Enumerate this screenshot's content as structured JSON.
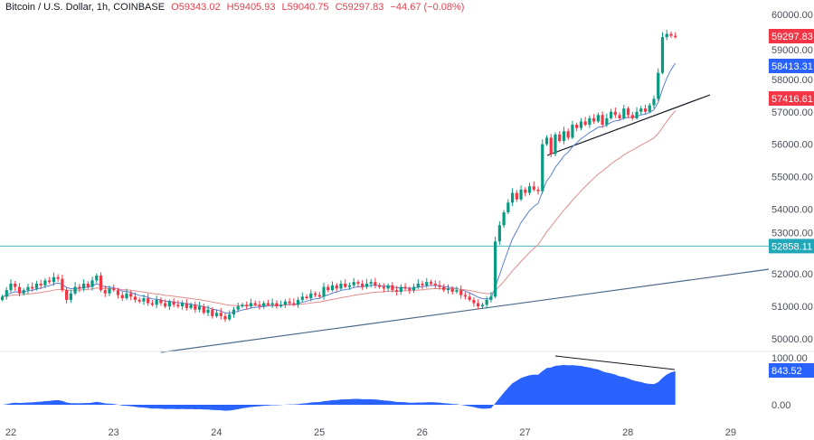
{
  "header": {
    "symbol": "Bitcoin / U.S. Dollar, 1h, COINBASE",
    "open": "O59343.02",
    "high": "H59405.93",
    "low": "L59040.75",
    "close": "C59297.83",
    "change": "−44.67 (−0.08%)"
  },
  "colors": {
    "up": "#089981",
    "down": "#f23645",
    "fast_ma": "#5b7fd6",
    "slow_ma": "#e08c8c",
    "support_line": "#4fb3c0",
    "oscillator": "#2962ff",
    "trendline": "#131722",
    "long_trendline": "#4a6a8a"
  },
  "chart_data": {
    "type": "candlestick",
    "title": "Bitcoin / U.S. Dollar, 1h, COINBASE",
    "x_tick_labels": [
      "22",
      "23",
      "24",
      "25",
      "26",
      "27",
      "28",
      "29"
    ],
    "y_tick_labels": [
      "60000.00",
      "59000.00",
      "58000.00",
      "57000.00",
      "56000.00",
      "55000.00",
      "54000.00",
      "53000.00",
      "52000.00",
      "51000.00",
      "50000.00"
    ],
    "ylim": [
      49700,
      60200
    ],
    "grid": false,
    "closes": [
      51300,
      51500,
      51700,
      51600,
      51400,
      51500,
      51600,
      51550,
      51700,
      51650,
      51800,
      51750,
      51900,
      51850,
      51500,
      51200,
      51400,
      51600,
      51550,
      51700,
      51600,
      51800,
      51950,
      51500,
      51400,
      51550,
      51500,
      51350,
      51250,
      51400,
      51300,
      51200,
      51150,
      51250,
      51100,
      51050,
      51200,
      51100,
      51000,
      51150,
      51050,
      51000,
      51100,
      50950,
      51050,
      50900,
      51000,
      50800,
      50900,
      50700,
      50800,
      50700,
      50600,
      50750,
      50900,
      51000,
      51050,
      51000,
      51100,
      51050,
      51000,
      51100,
      51050,
      51100,
      51000,
      51050,
      51150,
      51100,
      51050,
      51200,
      51300,
      51250,
      51400,
      51350,
      51300,
      51600,
      51500,
      51650,
      51550,
      51700,
      51600,
      51650,
      51750,
      51700,
      51600,
      51700,
      51750,
      51650,
      51600,
      51550,
      51650,
      51500,
      51450,
      51600,
      51550,
      51500,
      51600,
      51700,
      51650,
      51750,
      51700,
      51650,
      51600,
      51500,
      51550,
      51450,
      51500,
      51350,
      51300,
      51200,
      51100,
      51000,
      51050,
      51200,
      51300,
      53000,
      53500,
      53900,
      54200,
      54500,
      54300,
      54600,
      54500,
      54700,
      54600,
      54550,
      56000,
      56200,
      55700,
      56300,
      56100,
      56400,
      56200,
      56600,
      56500,
      56700,
      56600,
      56800,
      56700,
      56900,
      56600,
      56800,
      57000,
      56900,
      56800,
      57100,
      56900,
      56800,
      57000,
      57100,
      57000,
      57200,
      57400,
      58200,
      59300,
      59400,
      59343.02,
      59297.83
    ],
    "price_tags": {
      "last": "59297.83",
      "fast_ma": "58413.31",
      "slow_ma": "57416.61",
      "horizontal_level": "52858.11"
    },
    "horizontal_level": 52858.11,
    "oscillator": {
      "y_tick_labels": [
        "1000.00",
        "0.00"
      ],
      "ylim": [
        -150,
        1250
      ],
      "last_value": "843.52"
    }
  }
}
